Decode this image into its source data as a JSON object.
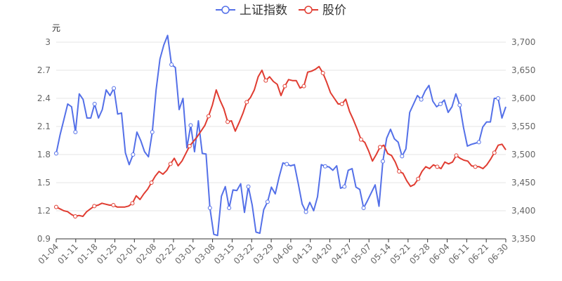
{
  "chart_data": {
    "type": "line",
    "y_left_unit": "元",
    "y_left": {
      "min": 0.9,
      "max": 3.0,
      "ticks": [
        "0.9",
        "1.2",
        "1.5",
        "1.8",
        "2.1",
        "2.4",
        "2.7",
        "3"
      ]
    },
    "y_right": {
      "min": 3350,
      "max": 3700,
      "ticks": [
        "3,350",
        "3,400",
        "3,450",
        "3,500",
        "3,550",
        "3,600",
        "3,650",
        "3,700"
      ]
    },
    "x_tick_labels": [
      "01-04",
      "01-11",
      "01-18",
      "01-25",
      "02-01",
      "02-08",
      "02-22",
      "03-01",
      "03-08",
      "03-15",
      "03-22",
      "03-29",
      "04-06",
      "04-13",
      "04-20",
      "04-27",
      "05-07",
      "05-14",
      "05-21",
      "05-28",
      "06-04",
      "06-11",
      "06-21",
      "06-30"
    ],
    "grid": true,
    "legend_position": "top-center",
    "series": [
      {
        "name": "上证指数",
        "axis": "right",
        "color": "#5470e8",
        "values": [
          3502,
          3535,
          3562,
          3590,
          3585,
          3540,
          3608,
          3598,
          3565,
          3565,
          3590,
          3565,
          3580,
          3615,
          3605,
          3618,
          3572,
          3574,
          3503,
          3482,
          3500,
          3540,
          3525,
          3505,
          3496,
          3540,
          3615,
          3670,
          3695,
          3712,
          3660,
          3655,
          3580,
          3600,
          3512,
          3552,
          3505,
          3560,
          3502,
          3501,
          3405,
          3358,
          3356,
          3426,
          3443,
          3405,
          3437,
          3436,
          3448,
          3397,
          3443,
          3410,
          3362,
          3360,
          3402,
          3416,
          3442,
          3430,
          3460,
          3485,
          3483,
          3480,
          3482,
          3448,
          3412,
          3398,
          3415,
          3400,
          3425,
          3482,
          3479,
          3478,
          3472,
          3480,
          3440,
          3443,
          3472,
          3475,
          3442,
          3438,
          3405,
          3418,
          3432,
          3446,
          3408,
          3488,
          3529,
          3545,
          3528,
          3522,
          3497,
          3510,
          3575,
          3590,
          3605,
          3598,
          3613,
          3623,
          3595,
          3585,
          3590,
          3597,
          3575,
          3585,
          3608,
          3588,
          3548,
          3515,
          3518,
          3520,
          3522,
          3549,
          3558,
          3558,
          3600,
          3600,
          3565,
          3585
        ]
      },
      {
        "name": "股价",
        "axis": "left",
        "color": "#e03c31",
        "values": [
          1.24,
          1.22,
          1.2,
          1.19,
          1.16,
          1.14,
          1.15,
          1.14,
          1.19,
          1.22,
          1.25,
          1.26,
          1.28,
          1.27,
          1.26,
          1.26,
          1.24,
          1.24,
          1.24,
          1.25,
          1.28,
          1.36,
          1.32,
          1.38,
          1.43,
          1.5,
          1.57,
          1.62,
          1.59,
          1.63,
          1.7,
          1.76,
          1.68,
          1.73,
          1.81,
          1.89,
          1.94,
          1.99,
          2.05,
          2.11,
          2.21,
          2.33,
          2.49,
          2.38,
          2.29,
          2.15,
          2.16,
          2.05,
          2.14,
          2.24,
          2.36,
          2.41,
          2.49,
          2.63,
          2.7,
          2.59,
          2.63,
          2.58,
          2.55,
          2.43,
          2.53,
          2.6,
          2.59,
          2.59,
          2.51,
          2.53,
          2.68,
          2.69,
          2.71,
          2.74,
          2.67,
          2.57,
          2.46,
          2.4,
          2.34,
          2.34,
          2.39,
          2.26,
          2.17,
          2.07,
          1.96,
          1.93,
          1.84,
          1.73,
          1.8,
          1.88,
          1.9,
          1.81,
          1.79,
          1.72,
          1.62,
          1.6,
          1.52,
          1.46,
          1.48,
          1.54,
          1.62,
          1.67,
          1.65,
          1.69,
          1.67,
          1.65,
          1.72,
          1.7,
          1.72,
          1.79,
          1.76,
          1.74,
          1.73,
          1.68,
          1.67,
          1.67,
          1.65,
          1.69,
          1.75,
          1.82,
          1.9,
          1.91,
          1.85
        ]
      }
    ]
  }
}
